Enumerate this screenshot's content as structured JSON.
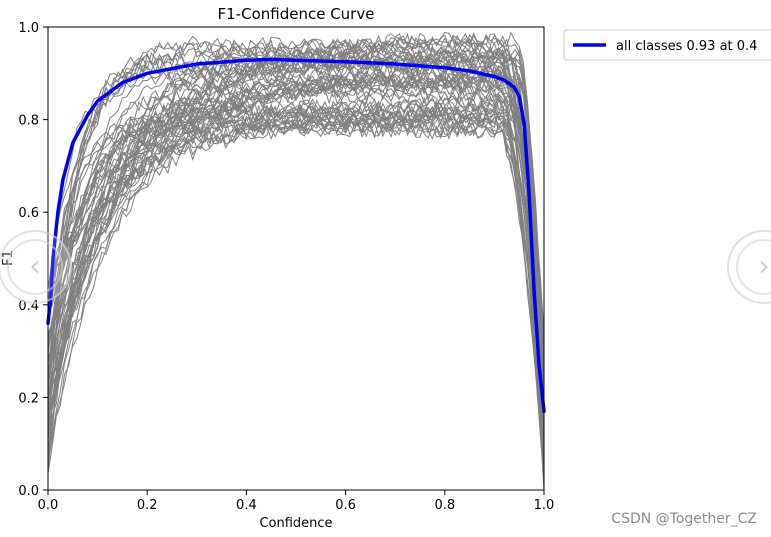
{
  "chart_data": {
    "type": "line",
    "title": "F1-Confidence Curve",
    "xlabel": "Confidence",
    "ylabel": "F1",
    "xlim": [
      0.0,
      1.0
    ],
    "ylim": [
      0.0,
      1.0
    ],
    "x_ticks": [
      "0.0",
      "0.2",
      "0.4",
      "0.6",
      "0.8",
      "1.0"
    ],
    "y_ticks": [
      "0.0",
      "0.2",
      "0.4",
      "0.6",
      "0.8",
      "1.0"
    ],
    "grid": false,
    "legend": {
      "location": "outside-top-right",
      "entries": [
        "all classes 0.93 at 0.4"
      ]
    },
    "colors": {
      "class_curves": "#808080",
      "summary_curve": "#0000ee"
    },
    "num_class_curves": 60,
    "summary_series": {
      "name": "all classes 0.93 at 0.4",
      "x": [
        0.0,
        0.005,
        0.01,
        0.02,
        0.03,
        0.05,
        0.08,
        0.1,
        0.15,
        0.2,
        0.3,
        0.4,
        0.45,
        0.5,
        0.6,
        0.7,
        0.8,
        0.85,
        0.9,
        0.92,
        0.94,
        0.95,
        0.96,
        0.97,
        0.98,
        0.99,
        1.0
      ],
      "y": [
        0.36,
        0.41,
        0.5,
        0.6,
        0.67,
        0.75,
        0.81,
        0.84,
        0.88,
        0.9,
        0.92,
        0.928,
        0.93,
        0.928,
        0.925,
        0.92,
        0.912,
        0.905,
        0.893,
        0.885,
        0.87,
        0.85,
        0.79,
        0.64,
        0.43,
        0.27,
        0.17
      ]
    }
  },
  "watermark": "CSDN @Together_CZ",
  "nav": {
    "prev_symbol": "‹",
    "next_symbol": "›"
  }
}
